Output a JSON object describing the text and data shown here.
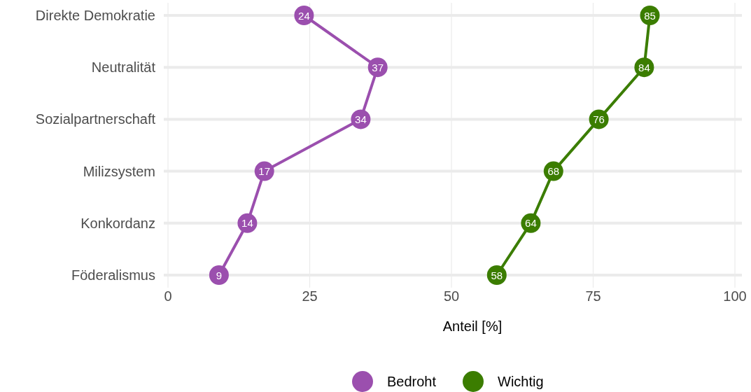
{
  "chart_data": {
    "type": "line",
    "orientation": "horizontal",
    "categories": [
      "Direkte Demokratie",
      "Neutralität",
      "Sozialpartnerschaft",
      "Milizsystem",
      "Konkordanz",
      "Föderalismus"
    ],
    "series": [
      {
        "name": "Bedroht",
        "color": "#9b4fae",
        "values": [
          24,
          37,
          34,
          17,
          14,
          9
        ]
      },
      {
        "name": "Wichtig",
        "color": "#3b7d00",
        "values": [
          85,
          84,
          76,
          68,
          64,
          58
        ]
      }
    ],
    "xlabel": "Anteil [%]",
    "xlim": [
      0,
      100
    ],
    "xticks": [
      0,
      25,
      50,
      75,
      100
    ],
    "grid": true,
    "legend": "bottom",
    "marker": "circle",
    "line_style": "solid",
    "data_labels": true
  }
}
